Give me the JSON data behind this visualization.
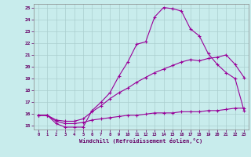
{
  "xlabel": "Windchill (Refroidissement éolien,°C)",
  "background_color": "#c8ecec",
  "line_color": "#990099",
  "xlim": [
    -0.5,
    23.5
  ],
  "ylim": [
    14.7,
    25.3
  ],
  "yticks": [
    15,
    16,
    17,
    18,
    19,
    20,
    21,
    22,
    23,
    24,
    25
  ],
  "xticks": [
    0,
    1,
    2,
    3,
    4,
    5,
    6,
    7,
    8,
    9,
    10,
    11,
    12,
    13,
    14,
    15,
    16,
    17,
    18,
    19,
    20,
    21,
    22,
    23
  ],
  "line1_x": [
    0,
    1,
    2,
    3,
    4,
    5,
    6,
    7,
    8,
    9,
    10,
    11,
    12,
    13,
    14,
    15,
    16,
    17,
    18,
    19,
    20,
    21,
    22,
    23
  ],
  "line1_y": [
    15.9,
    15.9,
    15.2,
    14.9,
    14.9,
    14.9,
    16.3,
    17.0,
    17.8,
    19.2,
    20.4,
    21.9,
    22.1,
    24.2,
    25.0,
    24.9,
    24.7,
    23.2,
    22.6,
    21.1,
    20.2,
    19.5,
    19.0,
    16.3
  ],
  "line2_x": [
    0,
    1,
    2,
    3,
    4,
    5,
    6,
    7,
    8,
    9,
    10,
    11,
    12,
    13,
    14,
    15,
    16,
    17,
    18,
    19,
    20,
    21,
    22,
    23
  ],
  "line2_y": [
    15.9,
    15.9,
    15.5,
    15.4,
    15.4,
    15.6,
    16.2,
    16.7,
    17.3,
    17.8,
    18.2,
    18.7,
    19.1,
    19.5,
    19.8,
    20.1,
    20.4,
    20.6,
    20.5,
    20.7,
    20.8,
    21.0,
    20.2,
    19.1
  ],
  "line3_x": [
    0,
    1,
    2,
    3,
    4,
    5,
    6,
    7,
    8,
    9,
    10,
    11,
    12,
    13,
    14,
    15,
    16,
    17,
    18,
    19,
    20,
    21,
    22,
    23
  ],
  "line3_y": [
    15.9,
    15.9,
    15.4,
    15.2,
    15.2,
    15.3,
    15.5,
    15.6,
    15.7,
    15.8,
    15.9,
    15.9,
    16.0,
    16.1,
    16.1,
    16.1,
    16.2,
    16.2,
    16.2,
    16.3,
    16.3,
    16.4,
    16.5,
    16.5
  ]
}
